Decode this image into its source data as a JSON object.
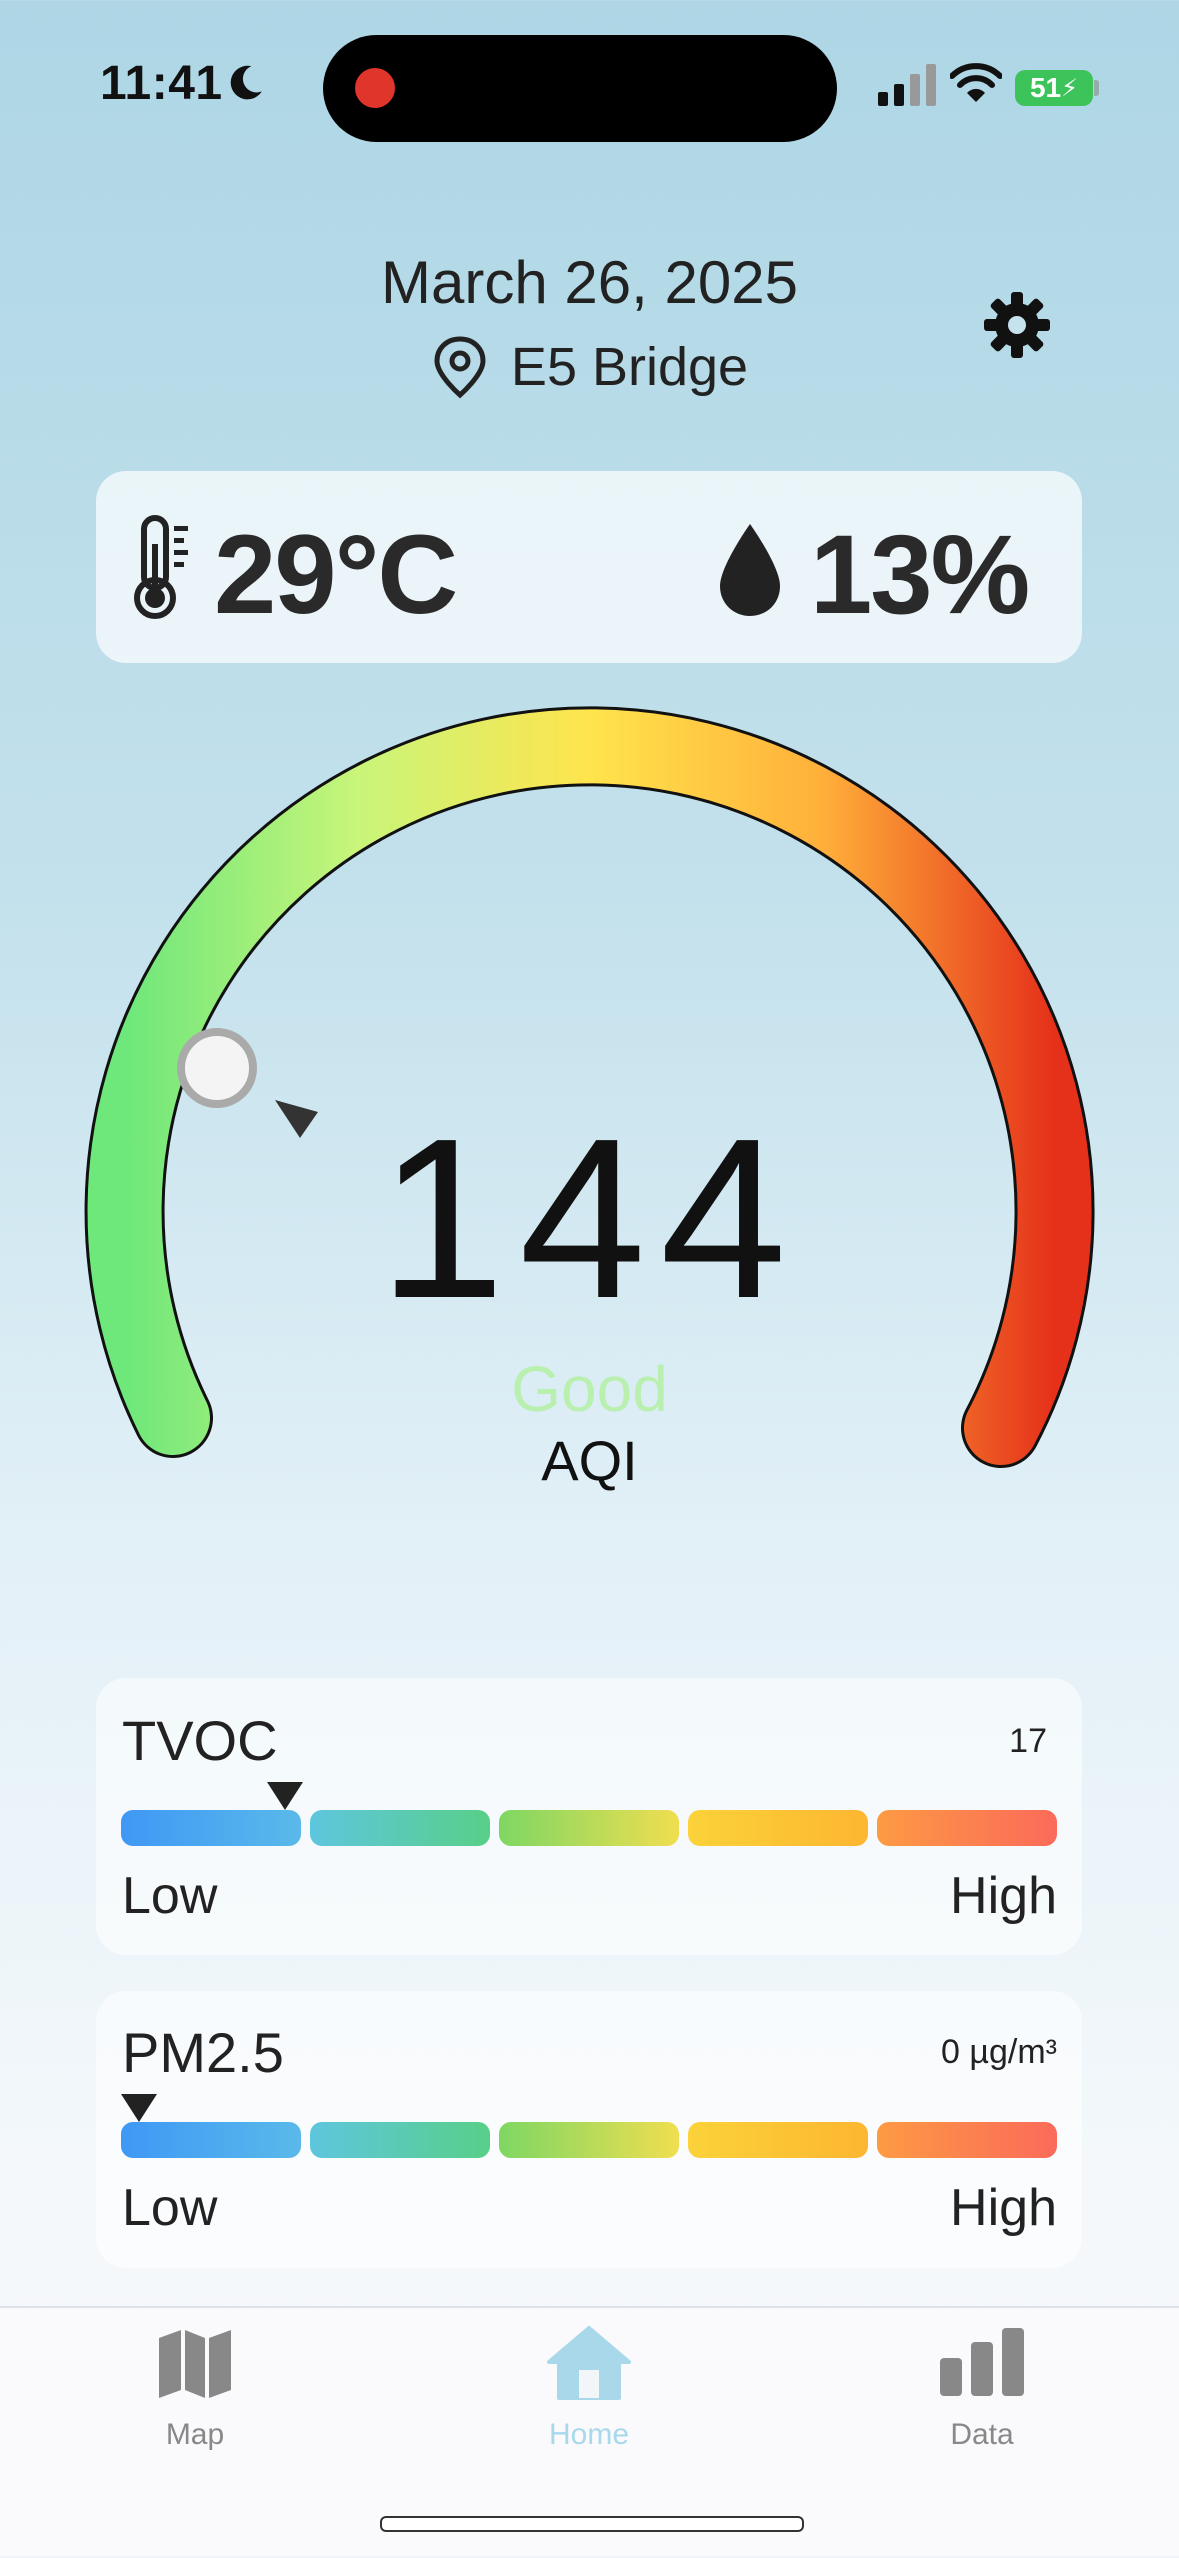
{
  "status_bar": {
    "time": "11:41",
    "battery": "51",
    "icons": [
      "moon-icon",
      "signal-icon",
      "wifi-icon",
      "battery-icon"
    ]
  },
  "header": {
    "date": "March 26, 2025",
    "location": "E5 Bridge"
  },
  "weather": {
    "temperature": "29°C",
    "humidity": "13%"
  },
  "aqi": {
    "value": "144",
    "status": "Good",
    "label": "AQI",
    "status_color": "#b9f0b0"
  },
  "sensors": [
    {
      "name": "TVOC",
      "value": "17",
      "low_label": "Low",
      "high_label": "High",
      "level": 0.175
    },
    {
      "name": "PM2.5",
      "value": "0 µg/m³",
      "low_label": "Low",
      "high_label": "High",
      "level": 0.0
    }
  ],
  "tabs": [
    {
      "label": "Map",
      "icon": "map-icon",
      "color": "#888888"
    },
    {
      "label": "Home",
      "icon": "home-icon",
      "color": "#a8d8ea"
    },
    {
      "label": "Data",
      "icon": "bar-chart-icon",
      "color": "#888888"
    }
  ],
  "active_tab": "Home"
}
